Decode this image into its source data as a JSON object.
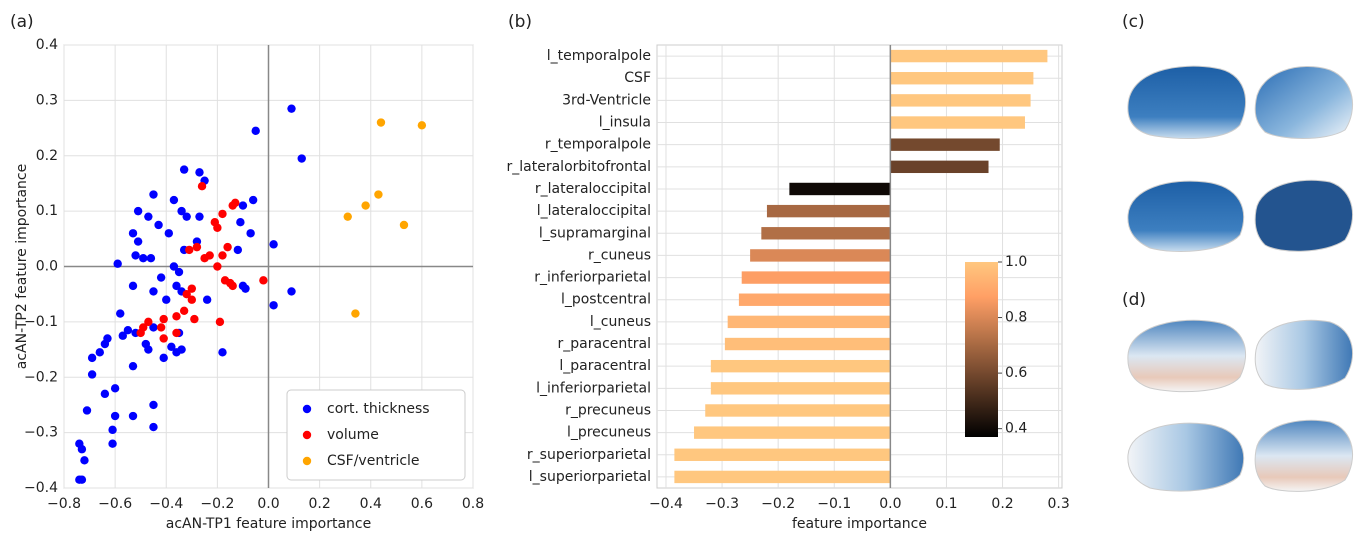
{
  "chart_data": [
    {
      "type": "scatter",
      "panel_label": "(a)",
      "xlabel": "acAN-TP1 feature importance",
      "ylabel": "acAN-TP2 feature importance",
      "xlim": [
        -0.8,
        0.8
      ],
      "ylim": [
        -0.4,
        0.4
      ],
      "xticks": [
        {
          "value": -0.8,
          "label": "−0.8"
        },
        {
          "value": -0.6,
          "label": "−0.6"
        },
        {
          "value": -0.4,
          "label": "−0.4"
        },
        {
          "value": -0.2,
          "label": "−0.2"
        },
        {
          "value": 0,
          "label": "0.0"
        },
        0.2,
        0.4,
        0.6,
        0.8
      ],
      "yticks": [
        {
          "value": -0.4,
          "label": "−0.4"
        },
        {
          "value": -0.3,
          "label": "−0.3"
        },
        {
          "value": -0.2,
          "label": "−0.2"
        },
        {
          "value": -0.1,
          "label": "−0.1"
        },
        {
          "value": 0,
          "label": "0.0"
        },
        0.1,
        0.2,
        0.3,
        0.4
      ],
      "grid": true,
      "zero_lines": true,
      "legend": "lower right",
      "series": [
        {
          "name": "cort. thickness",
          "color": "#0000ff",
          "x": [
            0.09,
            0.13,
            -0.05,
            -0.33,
            -0.27,
            -0.25,
            -0.45,
            -0.37,
            -0.06,
            -0.1,
            -0.34,
            -0.32,
            -0.51,
            -0.47,
            -0.27,
            -0.43,
            -0.11,
            -0.53,
            -0.51,
            -0.39,
            -0.07,
            -0.28,
            -0.33,
            -0.12,
            -0.52,
            -0.49,
            -0.46,
            -0.37,
            -0.59,
            0.02,
            -0.42,
            -0.35,
            -0.36,
            -0.53,
            -0.1,
            -0.09,
            0.09,
            -0.45,
            -0.34,
            0.02,
            -0.4,
            -0.24,
            -0.58,
            -0.45,
            -0.52,
            -0.55,
            -0.57,
            -0.35,
            -0.48,
            -0.63,
            -0.64,
            -0.38,
            -0.34,
            -0.36,
            -0.47,
            -0.18,
            -0.66,
            -0.69,
            -0.41,
            -0.53,
            -0.69,
            -0.64,
            -0.6,
            -0.71,
            -0.45,
            -0.53,
            -0.6,
            -0.61,
            -0.45,
            -0.61,
            -0.74,
            -0.73,
            -0.72,
            -0.74,
            -0.73
          ],
          "values": [
            0.285,
            0.195,
            0.245,
            0.175,
            0.17,
            0.155,
            0.13,
            0.12,
            0.12,
            0.11,
            0.1,
            0.09,
            0.1,
            0.09,
            0.09,
            0.075,
            0.08,
            0.06,
            0.045,
            0.06,
            0.06,
            0.045,
            0.03,
            0.03,
            0.02,
            0.015,
            0.015,
            0.0,
            0.005,
            0.04,
            -0.02,
            -0.01,
            -0.035,
            -0.035,
            -0.035,
            -0.04,
            -0.045,
            -0.045,
            -0.045,
            -0.07,
            -0.06,
            -0.06,
            -0.085,
            -0.11,
            -0.12,
            -0.115,
            -0.125,
            -0.12,
            -0.14,
            -0.13,
            -0.14,
            -0.145,
            -0.15,
            -0.155,
            -0.15,
            -0.155,
            -0.155,
            -0.165,
            -0.165,
            -0.18,
            -0.195,
            -0.23,
            -0.22,
            -0.26,
            -0.25,
            -0.27,
            -0.27,
            -0.295,
            -0.29,
            -0.32,
            -0.32,
            -0.33,
            -0.35,
            -0.385,
            -0.385
          ]
        },
        {
          "name": "volume",
          "color": "#ff0000",
          "x": [
            -0.26,
            -0.21,
            -0.18,
            -0.2,
            -0.14,
            -0.13,
            -0.16,
            -0.31,
            -0.28,
            -0.25,
            -0.23,
            -0.2,
            -0.18,
            -0.02,
            -0.17,
            -0.15,
            -0.14,
            -0.3,
            -0.3,
            -0.33,
            -0.36,
            -0.29,
            -0.41,
            -0.42,
            -0.47,
            -0.49,
            -0.5,
            -0.36,
            -0.19,
            -0.41,
            -0.32
          ],
          "values": [
            0.145,
            0.08,
            0.095,
            0.07,
            0.11,
            0.115,
            0.035,
            0.03,
            0.035,
            0.015,
            0.02,
            0.0,
            0.02,
            -0.025,
            -0.025,
            -0.03,
            -0.035,
            -0.04,
            -0.06,
            -0.08,
            -0.09,
            -0.095,
            -0.095,
            -0.11,
            -0.1,
            -0.11,
            -0.12,
            -0.12,
            -0.1,
            -0.13,
            -0.05
          ]
        },
        {
          "name": "CSF/ventricle",
          "color": "#ffa500",
          "x": [
            0.44,
            0.6,
            0.43,
            0.38,
            0.31,
            0.53,
            0.34
          ],
          "values": [
            0.26,
            0.255,
            0.13,
            0.11,
            0.09,
            0.075,
            -0.085
          ]
        }
      ]
    },
    {
      "type": "bar",
      "orientation": "horizontal",
      "panel_label": "(b)",
      "xlabel": "feature importance",
      "xlim": [
        -0.416,
        0.306
      ],
      "xticks": [
        {
          "value": -0.4,
          "label": "−0.4"
        },
        {
          "value": -0.3,
          "label": "−0.3"
        },
        {
          "value": -0.2,
          "label": "−0.2"
        },
        {
          "value": -0.1,
          "label": "−0.1"
        },
        {
          "value": 0,
          "label": "0.0"
        },
        0.1,
        0.2,
        0.3
      ],
      "grid": true,
      "zero_lines": true,
      "categories": [
        "l_temporalpole",
        "CSF",
        "3rd-Ventricle",
        "l_insula",
        "r_temporalpole",
        "r_lateralorbitofrontal",
        "r_lateraloccipital",
        "l_lateraloccipital",
        "l_supramarginal",
        "r_cuneus",
        "r_inferiorparietal",
        "l_postcentral",
        "l_cuneus",
        "r_paracentral",
        "l_paracentral",
        "l_inferiorparietal",
        "r_precuneus",
        "l_precuneus",
        "r_superiorparietal",
        "l_superiorparietal"
      ],
      "values": [
        0.28,
        0.255,
        0.25,
        0.24,
        0.195,
        0.175,
        -0.18,
        -0.22,
        -0.23,
        -0.25,
        -0.265,
        -0.27,
        -0.29,
        -0.295,
        -0.32,
        -0.32,
        -0.33,
        -0.35,
        -0.385,
        -0.385
      ],
      "color_values": [
        1.0,
        1.0,
        1.0,
        1.0,
        0.6,
        0.58,
        0.4,
        0.7,
        0.72,
        0.8,
        0.87,
        0.9,
        0.95,
        0.97,
        1.0,
        1.0,
        1.0,
        1.0,
        1.0,
        1.0
      ],
      "colormap": "copper",
      "colorbar": {
        "lim": [
          0.37,
          1.0
        ],
        "ticks": [
          0.4,
          0.6,
          0.8,
          {
            "value": 1,
            "label": "1.0"
          }
        ]
      }
    }
  ],
  "figure_panels": [
    {
      "panel_label": "(c)"
    },
    {
      "panel_label": "(d)"
    }
  ]
}
